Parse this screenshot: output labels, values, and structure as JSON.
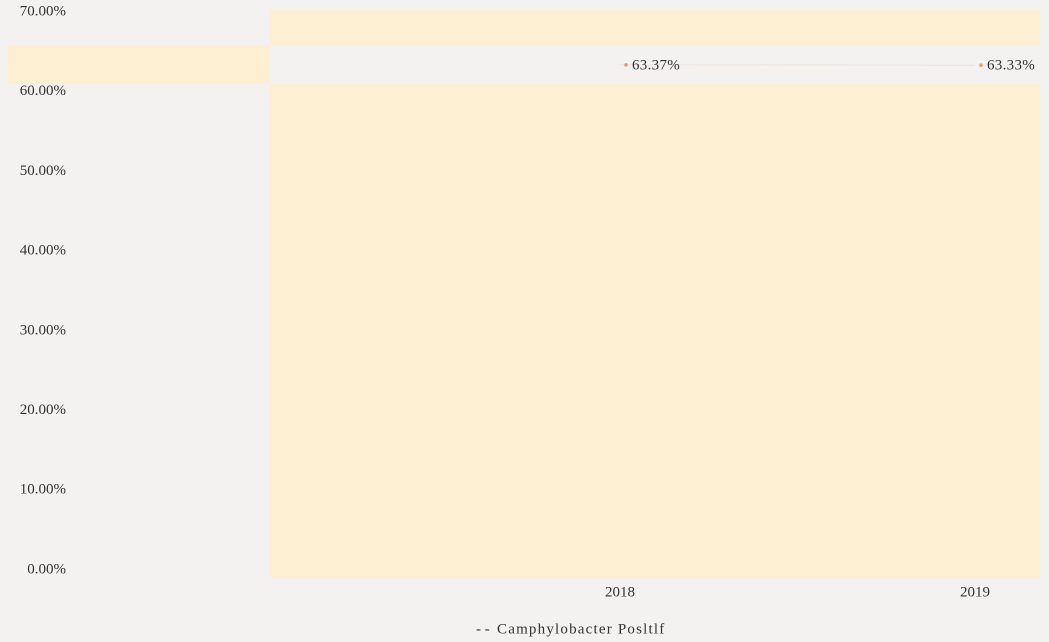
{
  "chart_data": {
    "type": "line",
    "categories": [
      "2018",
      "2019"
    ],
    "series": [
      {
        "name": "Camphylobacter Posltlf",
        "color": "#d9a07a",
        "values": [
          63.37,
          63.33
        ],
        "value_labels": [
          "63.37%",
          "63.33%"
        ]
      }
    ],
    "ylim": [
      0,
      70
    ],
    "yticks": [
      {
        "value": 0,
        "label": "0.00%"
      },
      {
        "value": 10,
        "label": "10.00%"
      },
      {
        "value": 20,
        "label": "20.00%"
      },
      {
        "value": 30,
        "label": "30.00%"
      },
      {
        "value": 40,
        "label": "40.00%"
      },
      {
        "value": 50,
        "label": "50.00%"
      },
      {
        "value": 60,
        "label": "60.00%"
      },
      {
        "value": 70,
        "label": "70.00%"
      }
    ],
    "legend": "bottom"
  }
}
